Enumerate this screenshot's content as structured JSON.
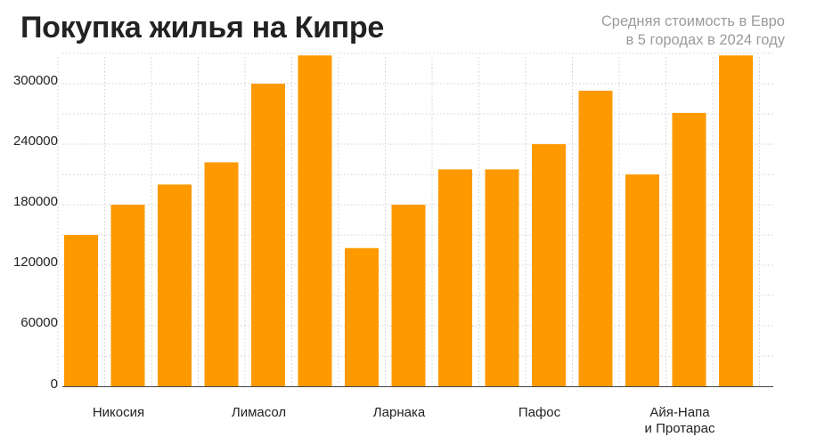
{
  "title": "Покупка жилья на Кипре",
  "subtitle_line1": "Средняя стоимость в Евро",
  "subtitle_line2": "в 5 городах в 2024 году",
  "colors": {
    "bar": "#ff9900",
    "grid": "#cfcfcf",
    "axis": "#444444",
    "text": "#222222",
    "subtitle": "#9b9b9b"
  },
  "chart_data": {
    "type": "bar",
    "title": "Покупка жилья на Кипре",
    "subtitle": "Средняя стоимость в Евро в 5 городах в 2024 году",
    "xlabel": "",
    "ylabel": "",
    "ylim": [
      0,
      330000
    ],
    "yticks": [
      0,
      60000,
      120000,
      180000,
      240000,
      300000
    ],
    "grid": true,
    "legend": "none",
    "groups": [
      {
        "label_lines": [
          "Никосия"
        ],
        "values": [
          150000,
          180000,
          200000
        ]
      },
      {
        "label_lines": [
          "Лимасол"
        ],
        "values": [
          222000,
          300000,
          328000
        ]
      },
      {
        "label_lines": [
          "Ларнака"
        ],
        "values": [
          137000,
          180000,
          215000
        ]
      },
      {
        "label_lines": [
          "Пафос"
        ],
        "values": [
          215000,
          240000,
          293000
        ]
      },
      {
        "label_lines": [
          "Айя-Напа",
          "и Протарас"
        ],
        "values": [
          210000,
          271000,
          328000
        ]
      }
    ]
  }
}
